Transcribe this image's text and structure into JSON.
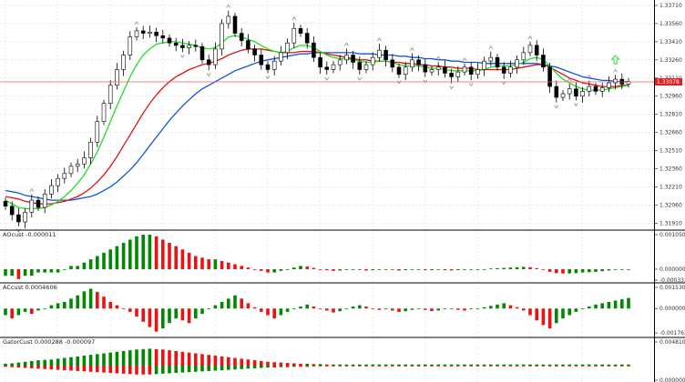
{
  "colors": {
    "bull": "#ffffff",
    "bear": "#000000",
    "wick": "#000000",
    "ma_green": "#22dd22",
    "ma_red": "#dd1111",
    "ma_blue": "#1155dd",
    "price_line": "#e06060",
    "price_tag": "#e02020",
    "hist_up": "#008800",
    "hist_down": "#ee1111",
    "grid": "#d8d8d8",
    "arrow_up": "#33dd33"
  },
  "main_panel": {
    "axis_ticks": [
      "1.33710",
      "1.33560",
      "1.33410",
      "1.33260",
      "1.33110",
      "1.32960",
      "1.32810",
      "1.32660",
      "1.32510",
      "1.32360",
      "1.32210",
      "1.32060",
      "1.31910"
    ],
    "current_price": "1.33078",
    "ylim": [
      1.3186,
      1.3374
    ]
  },
  "indicators": [
    {
      "label": "AOcust -0.000011",
      "ticks": [
        "0.0010509",
        "0.000000",
        "-0.0003328"
      ],
      "ylim": [
        -0.0003328,
        0.0010509
      ],
      "type": "ao"
    },
    {
      "label": "ACcust 0.0004606",
      "ticks": [
        "0.0015304",
        "0.000000",
        "-0.0017630"
      ],
      "ylim": [
        -0.001763,
        0.0015304
      ],
      "type": "ac"
    },
    {
      "label": "GatorCust 0.000288 -0.000097",
      "ticks": [
        "0.004810",
        "0.000000"
      ],
      "ylim": [
        0,
        0.00481
      ],
      "type": "gator"
    }
  ],
  "chart_data": {
    "type": "candlestick",
    "closes": [
      1.3205,
      1.3198,
      1.3192,
      1.32,
      1.321,
      1.3204,
      1.3215,
      1.3222,
      1.3228,
      1.3232,
      1.3238,
      1.324,
      1.3245,
      1.3258,
      1.3275,
      1.329,
      1.3305,
      1.3318,
      1.333,
      1.3345,
      1.335,
      1.3348,
      1.3349,
      1.3346,
      1.3344,
      1.334,
      1.3338,
      1.3336,
      1.3338,
      1.3337,
      1.3326,
      1.3322,
      1.3335,
      1.3356,
      1.3362,
      1.3348,
      1.3342,
      1.3335,
      1.333,
      1.3322,
      1.3318,
      1.3325,
      1.3332,
      1.334,
      1.3352,
      1.3348,
      1.334,
      1.3328,
      1.332,
      1.3318,
      1.3322,
      1.3326,
      1.333,
      1.3324,
      1.3318,
      1.3322,
      1.3328,
      1.3334,
      1.3326,
      1.332,
      1.3314,
      1.332,
      1.3326,
      1.3322,
      1.3316,
      1.3318,
      1.332,
      1.3315,
      1.3312,
      1.3316,
      1.332,
      1.3314,
      1.3318,
      1.3325,
      1.3328,
      1.332,
      1.3315,
      1.332,
      1.3326,
      1.3332,
      1.3338,
      1.333,
      1.332,
      1.3304,
      1.3295,
      1.3298,
      1.3302,
      1.3296,
      1.33,
      1.3304,
      1.33,
      1.3303,
      1.3307,
      1.331,
      1.3306,
      1.3308
    ],
    "ma_green": [
      1.321,
      1.3207,
      1.3204,
      1.3203,
      1.3203,
      1.3203,
      1.3204,
      1.3206,
      1.3209,
      1.3213,
      1.3218,
      1.3224,
      1.3231,
      1.324,
      1.325,
      1.3262,
      1.3275,
      1.3288,
      1.33,
      1.3312,
      1.3322,
      1.333,
      1.3335,
      1.3339,
      1.334,
      1.3341,
      1.3341,
      1.334,
      1.3339,
      1.3338,
      1.3336,
      1.3335,
      1.3336,
      1.334,
      1.3345,
      1.3346,
      1.3345,
      1.3343,
      1.3341,
      1.3338,
      1.3335,
      1.3333,
      1.3332,
      1.3333,
      1.3336,
      1.3338,
      1.3338,
      1.3336,
      1.3333,
      1.333,
      1.3328,
      1.3327,
      1.3327,
      1.3326,
      1.3325,
      1.3324,
      1.3324,
      1.3325,
      1.3325,
      1.3324,
      1.3322,
      1.3321,
      1.3321,
      1.3321,
      1.332,
      1.3319,
      1.3319,
      1.3318,
      1.3317,
      1.3317,
      1.3317,
      1.3317,
      1.3317,
      1.3318,
      1.332,
      1.3321,
      1.3321,
      1.3321,
      1.3322,
      1.3324,
      1.3327,
      1.3328,
      1.3326,
      1.3321,
      1.3315,
      1.331,
      1.3307,
      1.3304,
      1.3302,
      1.3301,
      1.3301,
      1.3301,
      1.3302,
      1.3303,
      1.3304,
      1.3305
    ],
    "ma_red": [
      1.3213,
      1.3212,
      1.3211,
      1.3209,
      1.3208,
      1.3207,
      1.3207,
      1.3207,
      1.3208,
      1.3209,
      1.3211,
      1.3213,
      1.3216,
      1.322,
      1.3225,
      1.3231,
      1.3238,
      1.3246,
      1.3255,
      1.3264,
      1.3273,
      1.3282,
      1.329,
      1.3297,
      1.3303,
      1.3308,
      1.3312,
      1.3315,
      1.3318,
      1.332,
      1.3322,
      1.3323,
      1.3325,
      1.3327,
      1.333,
      1.3332,
      1.3334,
      1.3335,
      1.3335,
      1.3335,
      1.3334,
      1.3333,
      1.3332,
      1.3332,
      1.3332,
      1.3333,
      1.3333,
      1.3333,
      1.3332,
      1.3331,
      1.333,
      1.3329,
      1.3328,
      1.3327,
      1.3326,
      1.3326,
      1.3325,
      1.3325,
      1.3325,
      1.3324,
      1.3324,
      1.3323,
      1.3323,
      1.3322,
      1.3322,
      1.3321,
      1.3321,
      1.332,
      1.332,
      1.3319,
      1.3319,
      1.3319,
      1.3318,
      1.3318,
      1.3318,
      1.3318,
      1.3318,
      1.3318,
      1.3319,
      1.332,
      1.3321,
      1.3322,
      1.3322,
      1.332,
      1.3317,
      1.3314,
      1.3311,
      1.3309,
      1.3307,
      1.3306,
      1.3305,
      1.3304,
      1.3304,
      1.3304,
      1.3305,
      1.3305
    ],
    "ma_blue": [
      1.3218,
      1.3217,
      1.3216,
      1.3214,
      1.3213,
      1.3212,
      1.3211,
      1.321,
      1.321,
      1.321,
      1.321,
      1.3211,
      1.3212,
      1.3213,
      1.3215,
      1.3218,
      1.3221,
      1.3225,
      1.323,
      1.3235,
      1.3241,
      1.3248,
      1.3255,
      1.3262,
      1.3269,
      1.3276,
      1.3282,
      1.3288,
      1.3293,
      1.3298,
      1.3302,
      1.3305,
      1.3308,
      1.3311,
      1.3314,
      1.3317,
      1.3319,
      1.3321,
      1.3323,
      1.3325,
      1.3326,
      1.3327,
      1.3328,
      1.3329,
      1.333,
      1.3331,
      1.3331,
      1.3332,
      1.3332,
      1.3332,
      1.3332,
      1.3332,
      1.3332,
      1.3332,
      1.3331,
      1.3331,
      1.3331,
      1.333,
      1.333,
      1.333,
      1.3329,
      1.3329,
      1.3328,
      1.3328,
      1.3327,
      1.3327,
      1.3326,
      1.3326,
      1.3325,
      1.3325,
      1.3324,
      1.3324,
      1.3324,
      1.3323,
      1.3323,
      1.3323,
      1.3323,
      1.3323,
      1.3323,
      1.3323,
      1.3323,
      1.3323,
      1.3322,
      1.3321,
      1.332,
      1.3318,
      1.3316,
      1.3314,
      1.3312,
      1.3311,
      1.331,
      1.3309,
      1.3309,
      1.3308,
      1.3308,
      1.3308
    ],
    "ao": [
      -2,
      -2,
      -3,
      -2,
      -2,
      -1,
      -1,
      -1,
      -1,
      0,
      1,
      1,
      2,
      3,
      4,
      5,
      6,
      7,
      8,
      9,
      10,
      10.5,
      10.5,
      10,
      9,
      8,
      7,
      6,
      5,
      4,
      3.5,
      3,
      3,
      2.5,
      2,
      1.5,
      1,
      0.5,
      0,
      -0.5,
      -1,
      -1,
      -0.5,
      0,
      0.5,
      1,
      0.8,
      0.4,
      0,
      -0.3,
      -0.5,
      -0.4,
      -0.2,
      0,
      -0.2,
      -0.4,
      -0.3,
      -0.2,
      -0.1,
      -0.2,
      -0.4,
      -0.3,
      -0.2,
      -0.2,
      -0.3,
      -0.3,
      -0.2,
      -0.3,
      -0.4,
      -0.3,
      -0.2,
      -0.2,
      -0.1,
      0,
      0.2,
      0.3,
      0.4,
      0.5,
      0.6,
      0.7,
      0.6,
      0.3,
      -0.2,
      -0.8,
      -1.2,
      -1.3,
      -1.3,
      -1.2,
      -1.0,
      -0.9,
      -0.8,
      -0.6,
      -0.4,
      -0.2,
      -0.1,
      0
    ],
    "ac": [
      -1,
      -1.5,
      -1,
      -0.5,
      -0.8,
      -0.3,
      0,
      0.5,
      0.8,
      1,
      1.5,
      2,
      2.6,
      3,
      2.5,
      1.8,
      1,
      0.5,
      0,
      -0.5,
      -1.2,
      -2,
      -2.8,
      -3.5,
      -3,
      -2.2,
      -1.5,
      -1.8,
      -2.2,
      -1.5,
      -0.8,
      0,
      0.5,
      1,
      1.5,
      2,
      1.5,
      0.8,
      0.2,
      -0.5,
      -1,
      -1.5,
      -1,
      -0.5,
      0,
      0.3,
      0.6,
      0.3,
      0,
      -0.3,
      -0.6,
      -0.4,
      0,
      0.3,
      0.5,
      0.3,
      0,
      -0.2,
      -0.1,
      -0.3,
      -0.5,
      -0.4,
      -0.2,
      0,
      -0.2,
      -0.4,
      -0.3,
      -0.1,
      0,
      -0.2,
      -0.3,
      -0.1,
      0,
      0.2,
      0.4,
      0.6,
      0.8,
      0.5,
      0.2,
      -0.3,
      -1,
      -1.8,
      -2.5,
      -3,
      -2.2,
      -1.5,
      -1,
      -0.5,
      0,
      0.3,
      0.6,
      0.8,
      1,
      1.2,
      1.4,
      1.6
    ],
    "gator_up": [
      0.5,
      0.6,
      0.8,
      1,
      1.2,
      1.4,
      1.5,
      1.6,
      1.8,
      2,
      2.2,
      2.4,
      2.6,
      2.8,
      3,
      3.2,
      3.4,
      3.6,
      3.8,
      4,
      4.2,
      4.3,
      4.4,
      4.3,
      4.2,
      4,
      3.8,
      3.6,
      3.4,
      3.2,
      3,
      2.8,
      2.6,
      2.4,
      2.2,
      2,
      1.8,
      1.6,
      1.4,
      1.2,
      1,
      0.9,
      0.8,
      0.7,
      0.6,
      0.5,
      0.5,
      0.4,
      0.4,
      0.3,
      0.3,
      0.3,
      0.3,
      0.3,
      0.3,
      0.3,
      0.3,
      0.3,
      0.3,
      0.3,
      0.3,
      0.3,
      0.3,
      0.3,
      0.3,
      0.3,
      0.3,
      0.3,
      0.3,
      0.3,
      0.3,
      0.3,
      0.3,
      0.3,
      0.3,
      0.3,
      0.3,
      0.3,
      0.3,
      0.3,
      0.3,
      0.3,
      0.3,
      0.3,
      0.3,
      0.3,
      0.3,
      0.3,
      0.3,
      0.3,
      0.3,
      0.3,
      0.3,
      0.3,
      0.3,
      0.3
    ],
    "gator_down": [
      0.3,
      0.4,
      0.5,
      0.6,
      0.7,
      0.8,
      0.9,
      1,
      1.1,
      1.2,
      1.3,
      1.4,
      1.5,
      1.6,
      1.7,
      1.8,
      1.9,
      2,
      2.1,
      2.2,
      2.3,
      2.3,
      2.3,
      2.2,
      2.1,
      2,
      1.9,
      1.8,
      1.7,
      1.6,
      1.5,
      1.4,
      1.3,
      1.2,
      1.1,
      1,
      0.9,
      0.8,
      0.7,
      0.6,
      0.5,
      0.5,
      0.4,
      0.4,
      0.3,
      0.3,
      0.3,
      0.2,
      0.2,
      0.2,
      0.2,
      0.2,
      0.2,
      0.2,
      0.2,
      0.2,
      0.2,
      0.2,
      0.2,
      0.2,
      0.2,
      0.2,
      0.2,
      0.2,
      0.2,
      0.2,
      0.2,
      0.2,
      0.2,
      0.2,
      0.2,
      0.2,
      0.2,
      0.2,
      0.2,
      0.2,
      0.2,
      0.2,
      0.2,
      0.2,
      0.2,
      0.2,
      0.2,
      0.2,
      0.2,
      0.2,
      0.2,
      0.2,
      0.2,
      0.2,
      0.2,
      0.2,
      0.2,
      0.2,
      0.2,
      0.2
    ]
  }
}
